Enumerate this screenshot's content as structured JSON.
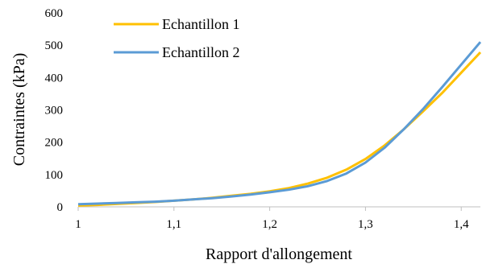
{
  "chart_data": {
    "type": "line",
    "title": "",
    "xlabel": "Rapport d'allongement",
    "ylabel": "Contraintes (kPa)",
    "xlim": [
      1,
      1.42
    ],
    "ylim": [
      0,
      600
    ],
    "x_ticks": [
      1,
      1.1,
      1.2,
      1.3,
      1.4
    ],
    "x_tick_labels": [
      "1",
      "1,1",
      "1,2",
      "1,3",
      "1,4"
    ],
    "y_ticks": [
      0,
      100,
      200,
      300,
      400,
      500,
      600
    ],
    "y_tick_labels": [
      "0",
      "100",
      "200",
      "300",
      "400",
      "500",
      "600"
    ],
    "grid": false,
    "legend": "top-left",
    "series": [
      {
        "name": "Echantillon 1",
        "color": "#FFC000",
        "x": [
          1.0,
          1.02,
          1.04,
          1.06,
          1.08,
          1.1,
          1.12,
          1.14,
          1.16,
          1.18,
          1.2,
          1.22,
          1.24,
          1.26,
          1.28,
          1.3,
          1.32,
          1.34,
          1.36,
          1.38,
          1.4,
          1.42
        ],
        "y": [
          4,
          6,
          9,
          12,
          15,
          19,
          23,
          28,
          34,
          40,
          48,
          58,
          72,
          90,
          115,
          148,
          190,
          240,
          295,
          352,
          415,
          478
        ]
      },
      {
        "name": "Echantillon 2",
        "color": "#5B9BD5",
        "x": [
          1.0,
          1.02,
          1.04,
          1.06,
          1.08,
          1.1,
          1.12,
          1.14,
          1.16,
          1.18,
          1.2,
          1.22,
          1.24,
          1.26,
          1.28,
          1.3,
          1.32,
          1.34,
          1.36,
          1.38,
          1.4,
          1.42
        ],
        "y": [
          8,
          10,
          12,
          14,
          16,
          19,
          23,
          27,
          32,
          38,
          45,
          53,
          64,
          80,
          103,
          137,
          183,
          240,
          302,
          370,
          440,
          510
        ]
      }
    ]
  }
}
